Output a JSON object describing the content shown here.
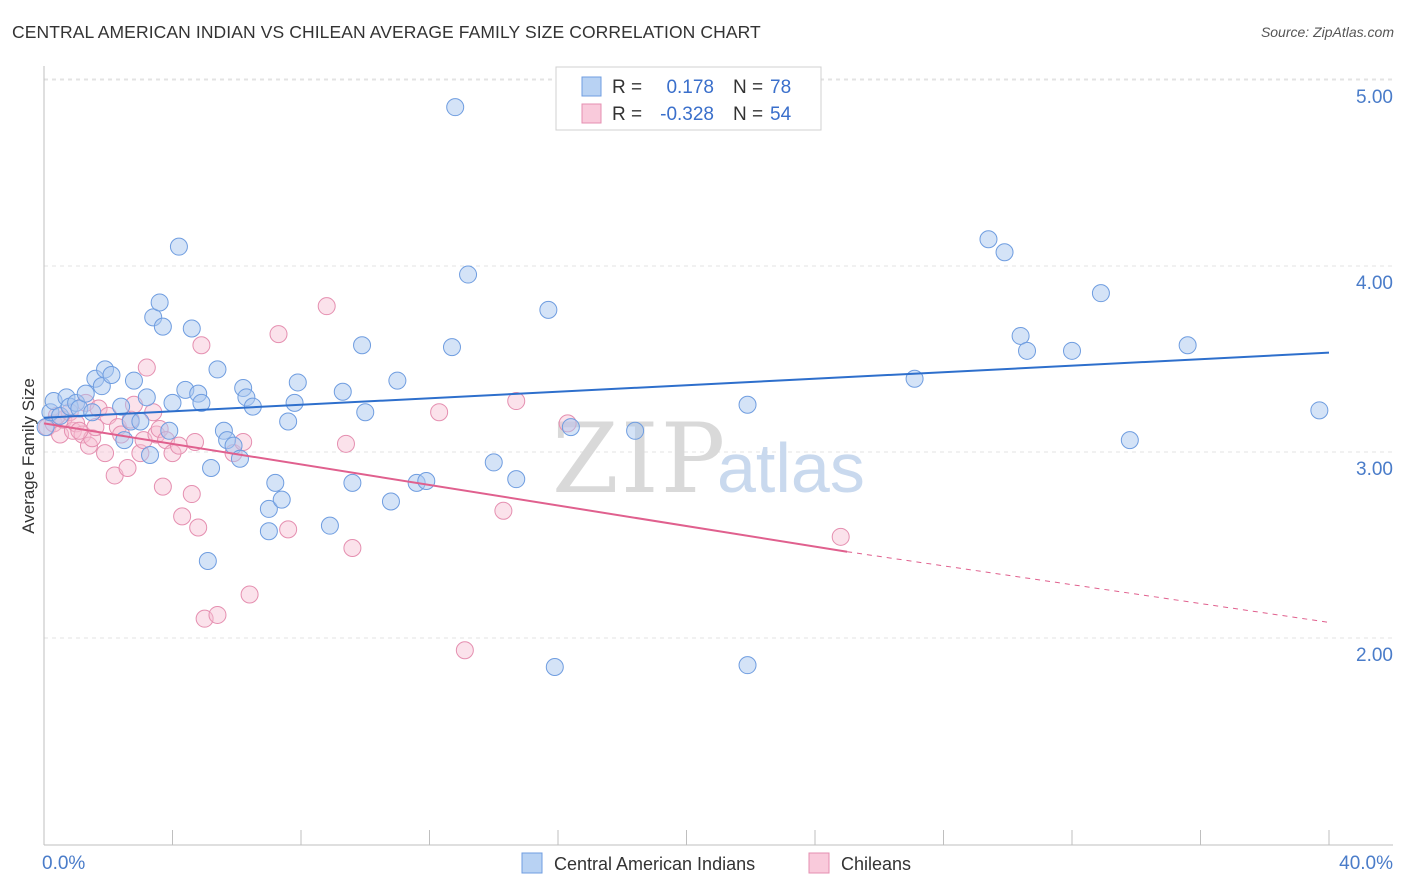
{
  "title": "CENTRAL AMERICAN INDIAN VS CHILEAN AVERAGE FAMILY SIZE CORRELATION CHART",
  "source": "Source: ZipAtlas.com",
  "watermark": {
    "zip": "ZIP",
    "atlas": "atlas"
  },
  "legend_stats": [
    {
      "r_label": "R =",
      "r_value": "0.178",
      "n_label": "N =",
      "n_value": "78"
    },
    {
      "r_label": "R =",
      "r_value": "-0.328",
      "n_label": "N =",
      "n_value": "54"
    }
  ],
  "chart_data": {
    "type": "scatter",
    "title": "CENTRAL AMERICAN INDIAN VS CHILEAN AVERAGE FAMILY SIZE CORRELATION CHART",
    "xlabel": "",
    "ylabel": "Average Family Size",
    "xlim": [
      0,
      40
    ],
    "ylim": [
      1.0,
      5.2
    ],
    "x_tick_labels": [
      "0.0%",
      "40.0%"
    ],
    "y_ticks": [
      2.0,
      3.0,
      4.0,
      5.0
    ],
    "y_tick_labels": [
      "2.00",
      "3.00",
      "4.00",
      "5.00"
    ],
    "grid": true,
    "legend_position": "bottom-center",
    "colors": {
      "blue_fill": "#a9c7f0",
      "blue_stroke": "#6f9de0",
      "blue_line": "#2e6fcc",
      "pink_fill": "#f6bfd2",
      "pink_stroke": "#e58fb0",
      "pink_line": "#e0608e"
    },
    "series": [
      {
        "name": "Central American Indians",
        "color": "#a9c7f0",
        "trend": {
          "x0": 0,
          "y0": 3.27,
          "x1": 40,
          "y1": 3.62
        },
        "points": [
          [
            0.05,
            3.22
          ],
          [
            0.2,
            3.3
          ],
          [
            0.3,
            3.36
          ],
          [
            0.5,
            3.28
          ],
          [
            0.7,
            3.38
          ],
          [
            0.8,
            3.33
          ],
          [
            1.0,
            3.35
          ],
          [
            1.1,
            3.32
          ],
          [
            1.3,
            3.4
          ],
          [
            1.5,
            3.3
          ],
          [
            1.6,
            3.48
          ],
          [
            1.8,
            3.44
          ],
          [
            1.9,
            3.53
          ],
          [
            2.1,
            3.5
          ],
          [
            2.4,
            3.33
          ],
          [
            2.5,
            3.15
          ],
          [
            2.7,
            3.25
          ],
          [
            2.8,
            3.47
          ],
          [
            3.0,
            3.25
          ],
          [
            3.2,
            3.38
          ],
          [
            3.3,
            3.07
          ],
          [
            3.4,
            3.81
          ],
          [
            3.6,
            3.89
          ],
          [
            3.7,
            3.76
          ],
          [
            3.9,
            3.2
          ],
          [
            4.0,
            3.35
          ],
          [
            4.2,
            4.19
          ],
          [
            4.4,
            3.42
          ],
          [
            4.6,
            3.75
          ],
          [
            4.8,
            3.4
          ],
          [
            4.9,
            3.35
          ],
          [
            5.1,
            2.5
          ],
          [
            5.2,
            3.0
          ],
          [
            5.4,
            3.53
          ],
          [
            5.6,
            3.2
          ],
          [
            5.7,
            3.15
          ],
          [
            5.9,
            3.12
          ],
          [
            6.1,
            3.05
          ],
          [
            6.2,
            3.43
          ],
          [
            6.3,
            3.38
          ],
          [
            6.5,
            3.33
          ],
          [
            7.0,
            2.78
          ],
          [
            7.0,
            2.66
          ],
          [
            7.2,
            2.92
          ],
          [
            7.4,
            2.83
          ],
          [
            7.6,
            3.25
          ],
          [
            7.8,
            3.35
          ],
          [
            7.9,
            3.46
          ],
          [
            8.9,
            2.69
          ],
          [
            9.3,
            3.41
          ],
          [
            9.6,
            2.92
          ],
          [
            9.9,
            3.66
          ],
          [
            10.0,
            3.3
          ],
          [
            10.8,
            2.82
          ],
          [
            11.0,
            3.47
          ],
          [
            11.6,
            2.92
          ],
          [
            11.9,
            2.93
          ],
          [
            12.7,
            3.65
          ],
          [
            12.8,
            4.94
          ],
          [
            13.2,
            4.04
          ],
          [
            14.0,
            3.03
          ],
          [
            14.7,
            2.94
          ],
          [
            15.7,
            3.85
          ],
          [
            15.9,
            1.93
          ],
          [
            16.4,
            3.22
          ],
          [
            18.4,
            3.2
          ],
          [
            21.9,
            1.94
          ],
          [
            21.9,
            3.34
          ],
          [
            27.1,
            3.48
          ],
          [
            29.4,
            4.23
          ],
          [
            29.9,
            4.16
          ],
          [
            30.4,
            3.71
          ],
          [
            30.6,
            3.63
          ],
          [
            32.0,
            3.63
          ],
          [
            32.9,
            3.94
          ],
          [
            33.8,
            3.15
          ],
          [
            35.6,
            3.66
          ],
          [
            39.7,
            3.31
          ]
        ]
      },
      {
        "name": "Chileans",
        "color": "#f6bfd2",
        "trend": {
          "x0": 0,
          "y0": 3.24,
          "x1": 25,
          "y1": 2.55,
          "dash_x1": 40,
          "dash_y1": 2.17
        },
        "points": [
          [
            0.1,
            3.22
          ],
          [
            0.3,
            3.24
          ],
          [
            0.5,
            3.18
          ],
          [
            0.6,
            3.26
          ],
          [
            0.8,
            3.3
          ],
          [
            0.9,
            3.2
          ],
          [
            1.0,
            3.24
          ],
          [
            1.2,
            3.18
          ],
          [
            1.3,
            3.35
          ],
          [
            1.4,
            3.12
          ],
          [
            1.5,
            3.16
          ],
          [
            1.6,
            3.22
          ],
          [
            1.7,
            3.32
          ],
          [
            1.9,
            3.08
          ],
          [
            2.0,
            3.28
          ],
          [
            2.2,
            2.96
          ],
          [
            2.3,
            3.22
          ],
          [
            2.4,
            3.18
          ],
          [
            2.6,
            3.0
          ],
          [
            2.7,
            3.26
          ],
          [
            2.8,
            3.34
          ],
          [
            3.0,
            3.08
          ],
          [
            3.1,
            3.15
          ],
          [
            3.2,
            3.54
          ],
          [
            3.4,
            3.3
          ],
          [
            3.5,
            3.18
          ],
          [
            3.6,
            3.21
          ],
          [
            3.7,
            2.9
          ],
          [
            3.8,
            3.15
          ],
          [
            4.0,
            3.08
          ],
          [
            4.2,
            3.12
          ],
          [
            4.3,
            2.74
          ],
          [
            4.6,
            2.86
          ],
          [
            4.7,
            3.14
          ],
          [
            4.8,
            2.68
          ],
          [
            4.9,
            3.66
          ],
          [
            5.0,
            2.19
          ],
          [
            5.4,
            2.21
          ],
          [
            5.9,
            3.08
          ],
          [
            6.2,
            3.14
          ],
          [
            6.4,
            2.32
          ],
          [
            7.3,
            3.72
          ],
          [
            7.6,
            2.67
          ],
          [
            8.8,
            3.87
          ],
          [
            9.4,
            3.13
          ],
          [
            9.6,
            2.57
          ],
          [
            12.3,
            3.3
          ],
          [
            13.1,
            2.02
          ],
          [
            14.3,
            2.77
          ],
          [
            14.7,
            3.36
          ],
          [
            16.3,
            3.24
          ],
          [
            24.8,
            2.63
          ],
          [
            0.4,
            3.28
          ],
          [
            1.1,
            3.2
          ]
        ]
      }
    ]
  }
}
